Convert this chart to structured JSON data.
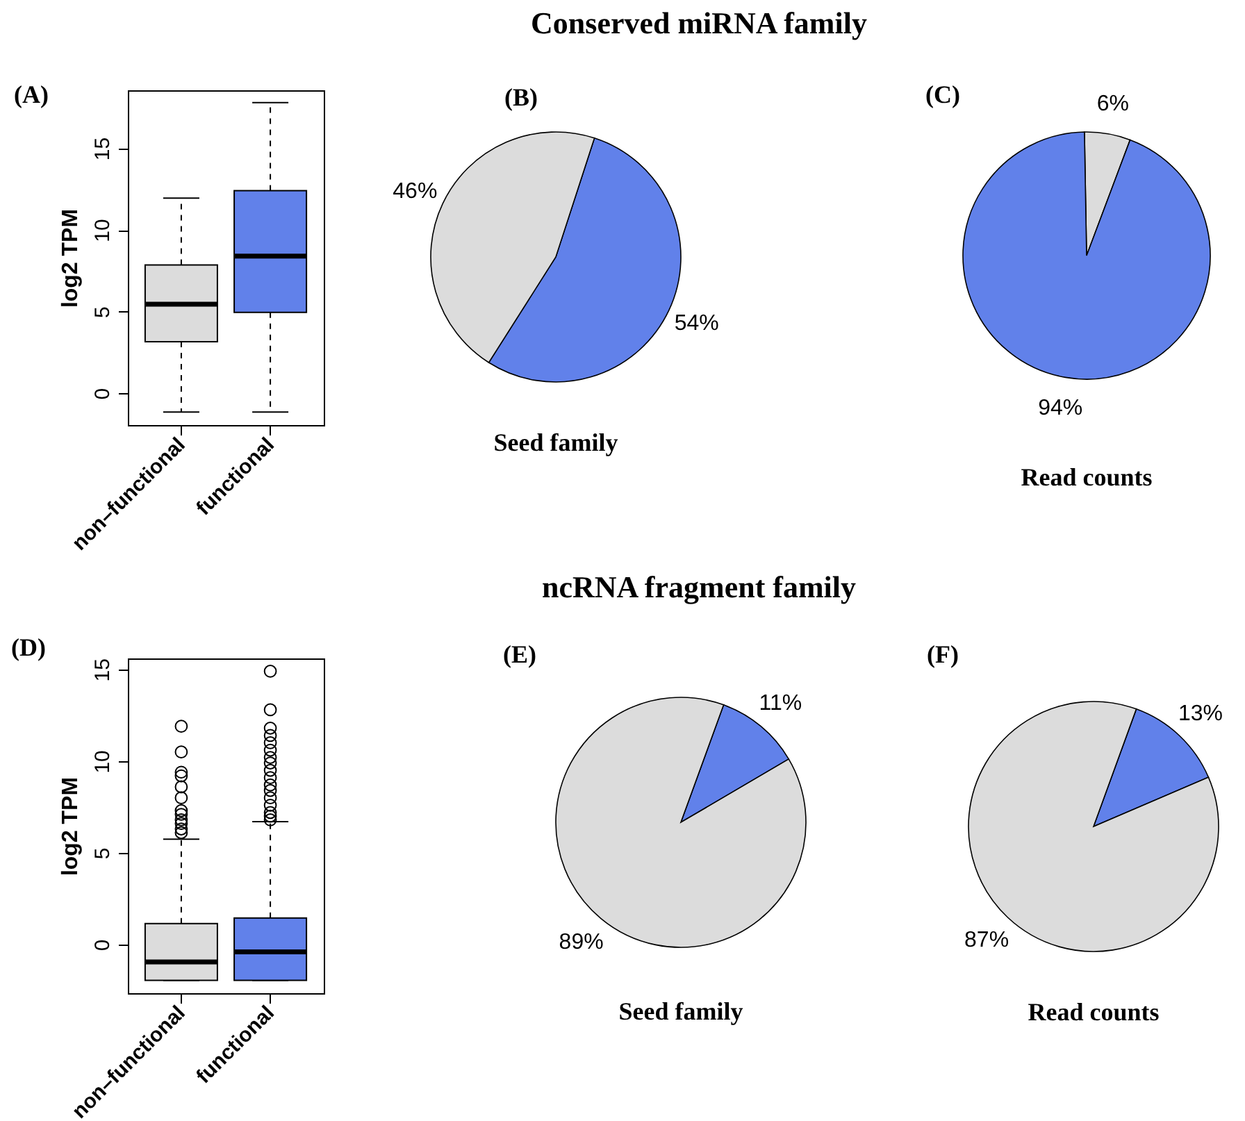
{
  "chart_data": [
    {
      "type": "box",
      "annotations": [
        "(A)"
      ],
      "ylabel": "log2 TPM",
      "categories": [
        "non–functional",
        "functional"
      ],
      "colors": [
        "#dcdcdc",
        "#6181ea"
      ],
      "ylim": [
        -1.95,
        18.55
      ],
      "yticks": [
        0,
        5,
        10,
        15
      ],
      "boxes": [
        {
          "low": -1.15,
          "q1": 3.15,
          "median": 5.45,
          "q3": 7.85,
          "high": 11.95
        },
        {
          "low": -1.15,
          "q1": 4.95,
          "median": 8.4,
          "q3": 12.4,
          "high": 17.8
        }
      ]
    },
    {
      "type": "pie",
      "title": "Conserved miRNA family",
      "annotations": [
        "(B)"
      ],
      "xlabel": "Seed family",
      "categories": [
        null,
        null
      ],
      "values": [
        54,
        46
      ],
      "colors": [
        "#6181ea",
        "#dcdcdc"
      ],
      "value_labels": [
        "54%",
        "46%"
      ]
    },
    {
      "type": "pie",
      "annotations": [
        "(C)"
      ],
      "xlabel": "Read counts",
      "categories": [
        null,
        null
      ],
      "values": [
        6,
        94
      ],
      "colors": [
        "#dcdcdc",
        "#6181ea"
      ],
      "value_labels": [
        "6%",
        "94%"
      ]
    },
    {
      "type": "box",
      "annotations": [
        "(D)"
      ],
      "ylabel": "log2 TPM",
      "categories": [
        "non–functional",
        "functional"
      ],
      "colors": [
        "#dcdcdc",
        "#6181ea"
      ],
      "ylim": [
        -2.65,
        15.6
      ],
      "yticks": [
        0,
        5,
        10,
        15
      ],
      "boxes": [
        {
          "low": -1.95,
          "q1": -1.95,
          "median": -0.95,
          "q3": 1.15,
          "high": 5.75,
          "outliers": [
            11.9,
            10.5,
            9.4,
            9.2,
            8.6,
            8.0,
            7.3,
            7.1,
            6.8,
            6.6,
            6.3,
            6.1
          ]
        },
        {
          "low": -1.95,
          "q1": -1.95,
          "median": -0.4,
          "q3": 1.45,
          "high": 6.7,
          "outliers": [
            14.9,
            12.8,
            11.8,
            11.4,
            11.0,
            10.6,
            10.2,
            9.9,
            9.5,
            9.1,
            8.7,
            8.4,
            8.0,
            7.6,
            7.2,
            7.0,
            6.8
          ]
        }
      ]
    },
    {
      "type": "pie",
      "title": "ncRNA fragment family",
      "annotations": [
        "(E)"
      ],
      "xlabel": "Seed family",
      "categories": [
        null,
        null
      ],
      "values": [
        11,
        89
      ],
      "colors": [
        "#6181ea",
        "#dcdcdc"
      ],
      "value_labels": [
        "11%",
        "89%"
      ]
    },
    {
      "type": "pie",
      "annotations": [
        "(F)"
      ],
      "xlabel": "Read counts",
      "categories": [
        null,
        null
      ],
      "values": [
        13,
        87
      ],
      "colors": [
        "#6181ea",
        "#dcdcdc"
      ],
      "value_labels": [
        "13%",
        "87%"
      ]
    }
  ]
}
